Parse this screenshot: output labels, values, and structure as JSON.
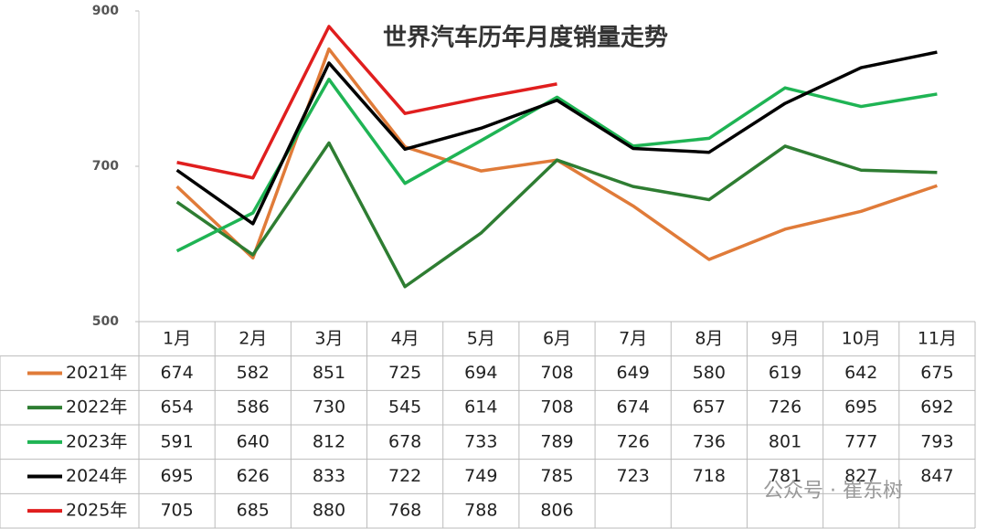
{
  "chart_data": {
    "type": "line",
    "title": "世界汽车历年月度销量走势",
    "categories": [
      "1月",
      "2月",
      "3月",
      "4月",
      "5月",
      "6月",
      "7月",
      "8月",
      "9月",
      "10月",
      "11月"
    ],
    "series": [
      {
        "name": "2021年",
        "color": "#e07b39",
        "values": [
          674,
          582,
          851,
          725,
          694,
          708,
          649,
          580,
          619,
          642,
          675
        ]
      },
      {
        "name": "2022年",
        "color": "#2e7d32",
        "values": [
          654,
          586,
          730,
          545,
          614,
          708,
          674,
          657,
          726,
          695,
          692
        ]
      },
      {
        "name": "2023年",
        "color": "#1fb454",
        "values": [
          591,
          640,
          812,
          678,
          733,
          789,
          726,
          736,
          801,
          777,
          793
        ]
      },
      {
        "name": "2024年",
        "color": "#000000",
        "values": [
          695,
          626,
          833,
          722,
          749,
          785,
          723,
          718,
          781,
          827,
          847
        ]
      },
      {
        "name": "2025年",
        "color": "#e01e1e",
        "values": [
          705,
          685,
          880,
          768,
          788,
          806,
          null,
          null,
          null,
          null,
          null
        ]
      }
    ],
    "ylim": [
      500,
      900
    ],
    "yticks": [
      500,
      700,
      900
    ],
    "grid": false,
    "watermark": "公众号 · 崔东树"
  }
}
